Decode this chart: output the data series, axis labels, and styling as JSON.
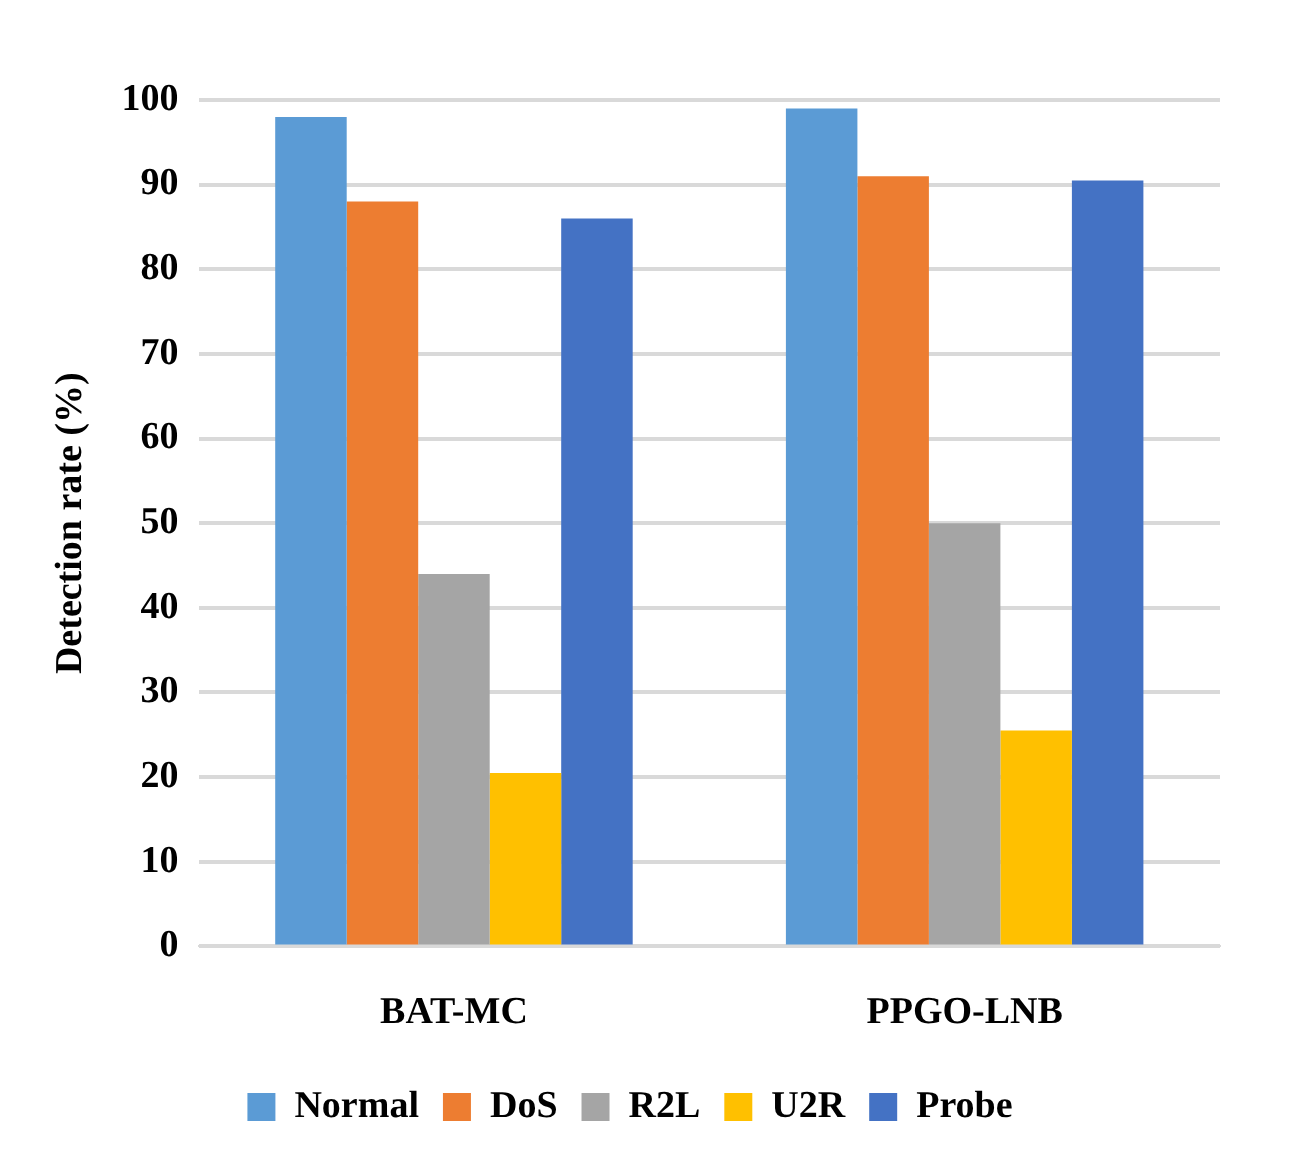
{
  "chart_data": {
    "type": "bar",
    "ylabel": "Detection rate (%)",
    "categories": [
      "BAT-MC",
      "PPGO-LNB"
    ],
    "series": [
      {
        "name": "Normal",
        "color": "#5b9bd5",
        "values": [
          98,
          99
        ]
      },
      {
        "name": "DoS",
        "color": "#ed7d31",
        "values": [
          88,
          91
        ]
      },
      {
        "name": "R2L",
        "color": "#a5a5a5",
        "values": [
          44,
          50
        ]
      },
      {
        "name": "U2R",
        "color": "#ffc000",
        "values": [
          20.5,
          25.5
        ]
      },
      {
        "name": "Probe",
        "color": "#4472c4",
        "values": [
          86,
          90.5
        ]
      }
    ],
    "ylim": [
      0,
      100
    ],
    "yticks": [
      0,
      10,
      20,
      30,
      40,
      50,
      60,
      70,
      80,
      90,
      100
    ],
    "grid": "y",
    "legend": "bottom"
  }
}
